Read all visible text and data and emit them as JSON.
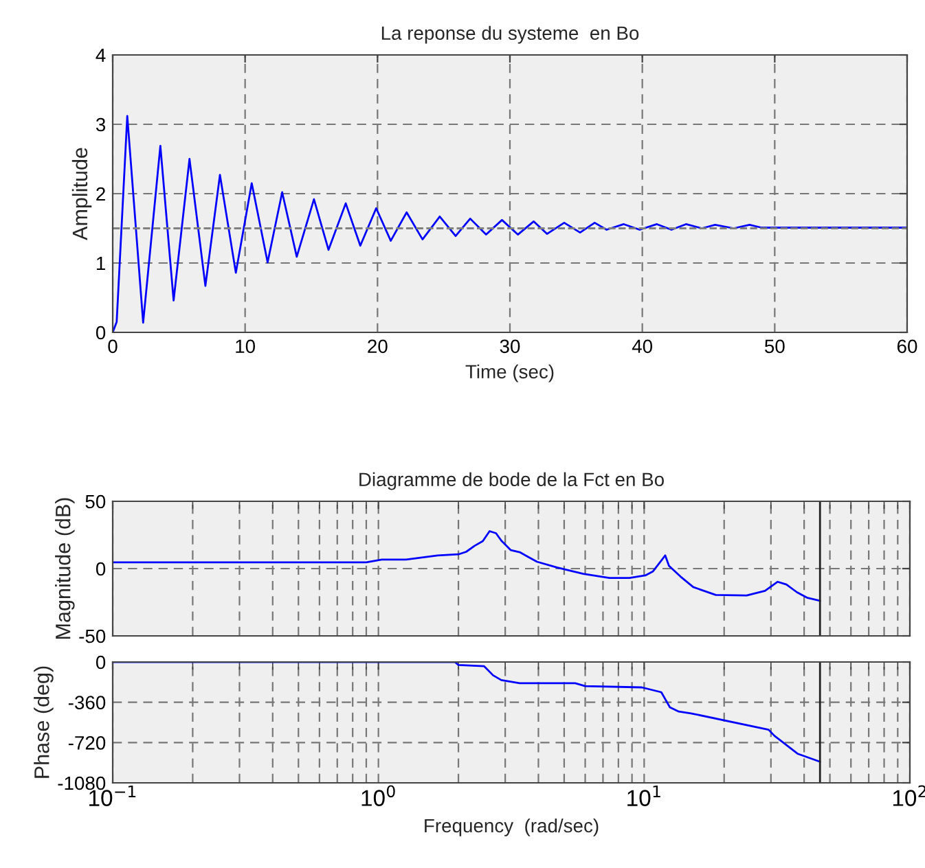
{
  "chart_data": [
    {
      "type": "line",
      "title": "La reponse du systeme  en Bo",
      "xlabel": "Time (sec)",
      "ylabel": "Amplitude",
      "grid": true,
      "x": [
        0,
        0.3,
        1.1,
        2.3,
        3.6,
        4.6,
        5.8,
        7.0,
        8.1,
        9.3,
        10.5,
        11.7,
        12.8,
        13.9,
        15.2,
        16.3,
        17.6,
        18.7,
        19.9,
        21.0,
        22.2,
        23.4,
        24.7,
        25.9,
        27.0,
        28.2,
        29.4,
        30.6,
        31.8,
        32.8,
        34.1,
        35.3,
        36.4,
        37.3,
        38.6,
        39.8,
        41.1,
        42.2,
        43.3,
        44.5,
        45.5,
        46.9,
        48.1,
        49.0,
        60
      ],
      "series": [
        {
          "color": "#0000ff",
          "values": [
            0,
            0.15,
            3.12,
            0.14,
            2.69,
            0.46,
            2.5,
            0.67,
            2.27,
            0.86,
            2.15,
            1.01,
            2.02,
            1.09,
            1.92,
            1.19,
            1.86,
            1.25,
            1.79,
            1.32,
            1.73,
            1.34,
            1.67,
            1.39,
            1.64,
            1.41,
            1.62,
            1.41,
            1.6,
            1.42,
            1.58,
            1.44,
            1.58,
            1.48,
            1.56,
            1.48,
            1.56,
            1.48,
            1.56,
            1.5,
            1.55,
            1.5,
            1.55,
            1.51,
            1.51
          ]
        }
      ],
      "xlim": [
        0,
        60
      ],
      "xticks": [
        0,
        10,
        20,
        30,
        40,
        50,
        60
      ],
      "ylim": [
        0,
        4
      ],
      "yticks": [
        0,
        1,
        2,
        3,
        4
      ],
      "ref_lines": [
        {
          "axis": "y",
          "value": 1.5,
          "color": "#808080",
          "line_style": "dashed"
        }
      ]
    },
    {
      "type": "line",
      "title": "Diagramme de bode de la Fct en Bo",
      "ylabel": "Magnitude (dB)",
      "grid": true,
      "log": "x",
      "tick_labels": "y",
      "x": [
        0.1,
        0.9,
        1.03,
        1.27,
        1.67,
        2.0,
        2.14,
        2.3,
        2.47,
        2.62,
        2.77,
        2.9,
        3.15,
        3.4,
        3.95,
        4.7,
        5.9,
        7.4,
        8.8,
        10.1,
        10.8,
        11.6,
        12.0,
        12.4,
        13.7,
        15.3,
        18.6,
        24.3,
        28.5,
        31.8,
        34.3,
        37.6,
        41,
        45.9
      ],
      "series": [
        {
          "color": "#0000ff",
          "values": [
            4.7,
            4.7,
            6.7,
            6.7,
            9.8,
            10.6,
            12.5,
            16.9,
            20.4,
            27.8,
            26.3,
            20.8,
            13.7,
            12.2,
            5.1,
            0.8,
            -3.9,
            -7,
            -7,
            -5.1,
            -2,
            5.9,
            9.8,
            2,
            -5.9,
            -13.7,
            -19.6,
            -20,
            -16.5,
            -9.8,
            -11.8,
            -17.6,
            -21.6,
            -23.9
          ]
        }
      ],
      "xlim": [
        0.1,
        100
      ],
      "ylim": [
        -50,
        50
      ],
      "yticks": [
        -50,
        0,
        50
      ],
      "ref_lines": [
        {
          "axis": "x",
          "value": 45.9,
          "color": "#222222",
          "line_style": "solid"
        }
      ]
    },
    {
      "type": "line",
      "xlabel": "Frequency  (rad/sec)",
      "ylabel": "Phase (deg)",
      "grid": true,
      "log": "x",
      "x": [
        0.1,
        1.94,
        2.0,
        2.5,
        2.7,
        2.9,
        3.4,
        5.5,
        6.0,
        9.8,
        11.6,
        12.5,
        13.5,
        15,
        29.4,
        30.9,
        37.9,
        45.9
      ],
      "series": [
        {
          "color": "#0000ff",
          "values": [
            0,
            0,
            -27,
            -38,
            -119,
            -162,
            -189,
            -189,
            -216,
            -227,
            -270,
            -405,
            -443,
            -459,
            -605,
            -659,
            -821,
            -891
          ]
        }
      ],
      "xlim": [
        0.1,
        100
      ],
      "xticks": [
        {
          "value": 0.1,
          "label": "10$^{−1}$"
        },
        {
          "value": 1,
          "label": "10$^{0}$"
        },
        {
          "value": 10,
          "label": "10$^{1}$"
        },
        {
          "value": 100,
          "label": "10$^{2}$"
        }
      ],
      "ylim": [
        -1080,
        0
      ],
      "yticks": [
        -1080,
        -720,
        -360,
        0
      ],
      "ref_lines": [
        {
          "axis": "x",
          "value": 45.9,
          "color": "#222222",
          "line_style": "solid"
        }
      ]
    }
  ]
}
